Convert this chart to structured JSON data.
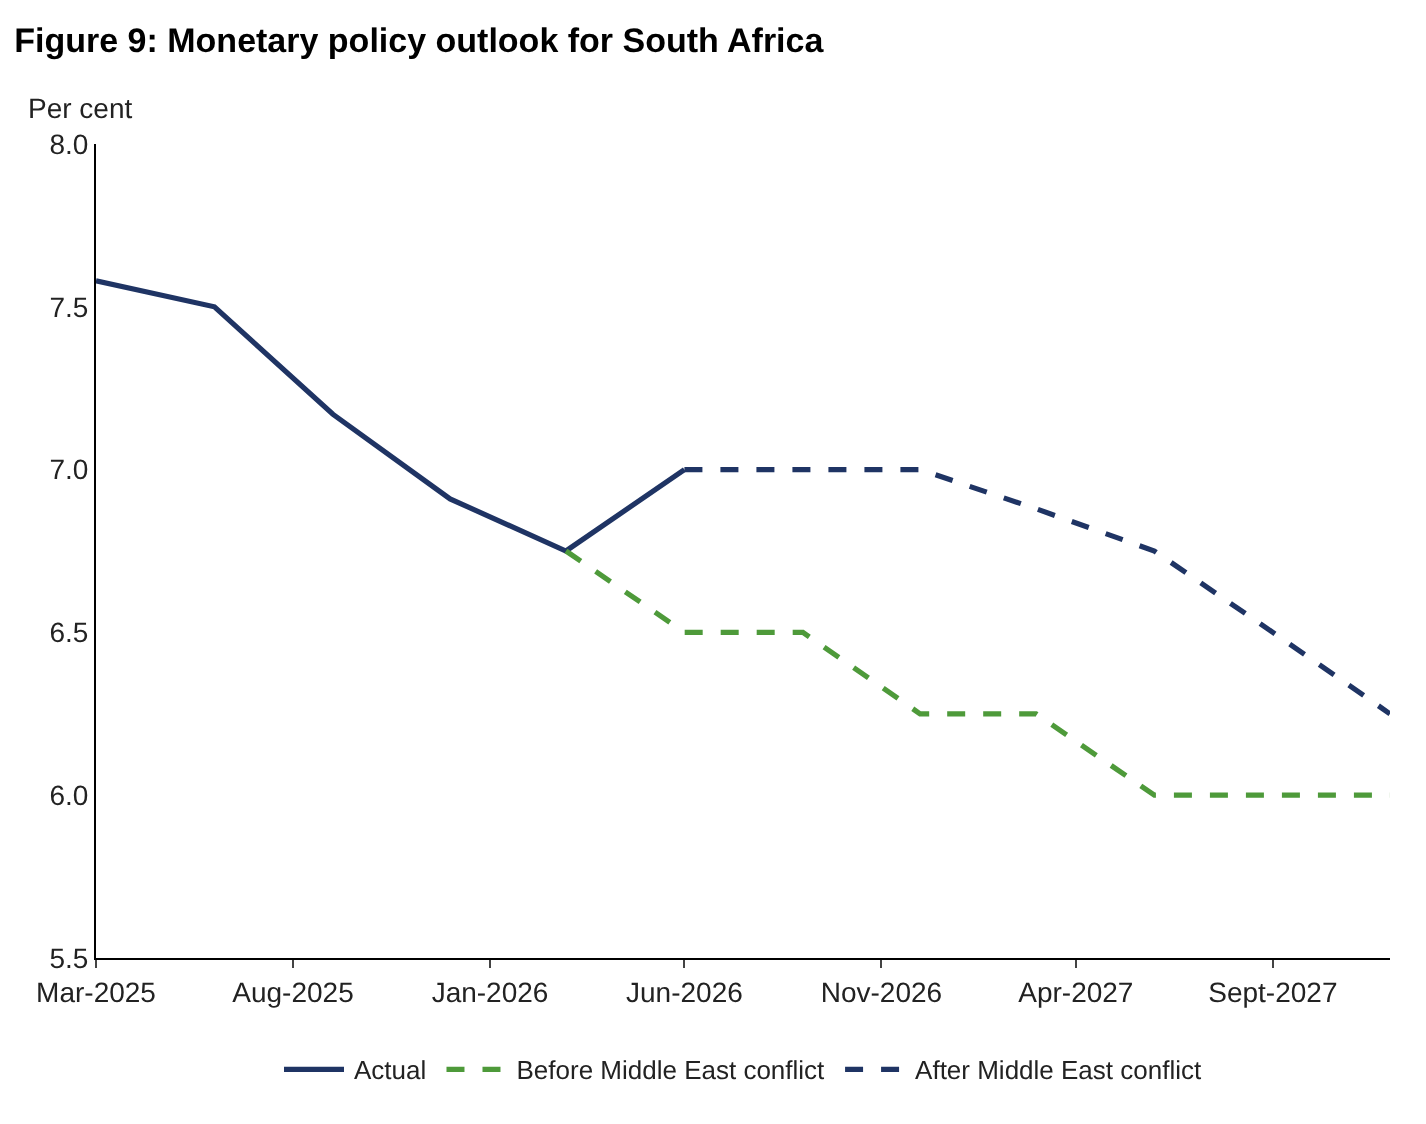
{
  "chart_data": {
    "type": "line",
    "title": "Figure 9: Monetary policy outlook for South Africa",
    "subtitle": "Per cent",
    "series": [
      {
        "name": "Actual",
        "color": "#1f3464",
        "line_style": "solid",
        "x": [
          "2025-03",
          "2025-06",
          "2025-09",
          "2025-12",
          "2026-03",
          "2026-06"
        ],
        "values": [
          7.58,
          7.5,
          7.17,
          6.91,
          6.75,
          7.0
        ]
      },
      {
        "name": "Before Middle East conflict",
        "color": "#4e9a3a",
        "line_style": "dashed",
        "x": [
          "2026-03",
          "2026-06",
          "2026-09",
          "2026-12",
          "2027-03",
          "2027-06",
          "2027-09",
          "2027-12"
        ],
        "values": [
          6.75,
          6.5,
          6.5,
          6.25,
          6.25,
          6.0,
          6.0,
          6.0
        ]
      },
      {
        "name": "After Middle East conflict",
        "color": "#1f3464",
        "line_style": "dashed",
        "x": [
          "2026-06",
          "2026-09",
          "2026-12",
          "2027-03",
          "2027-06",
          "2027-09",
          "2027-12"
        ],
        "values": [
          7.0,
          7.0,
          7.0,
          6.88,
          6.75,
          6.5,
          6.25
        ]
      }
    ],
    "xlim": [
      "2025-03",
      "2027-12"
    ],
    "xticks": [
      {
        "value": "2025-03",
        "label": "Mar-2025"
      },
      {
        "value": "2025-08",
        "label": "Aug-2025"
      },
      {
        "value": "2026-01",
        "label": "Jan-2026"
      },
      {
        "value": "2026-06",
        "label": "Jun-2026"
      },
      {
        "value": "2026-11",
        "label": "Nov-2026"
      },
      {
        "value": "2027-04",
        "label": "Apr-2027"
      },
      {
        "value": "2027-09",
        "label": "Sept-2027"
      }
    ],
    "ylim": [
      5.5,
      8.0
    ],
    "yticks": [
      {
        "value": 5.5,
        "label": "5.5"
      },
      {
        "value": 6,
        "label": "6.0"
      },
      {
        "value": 6.5,
        "label": "6.5"
      },
      {
        "value": 7,
        "label": "7.0"
      },
      {
        "value": 7.5,
        "label": "7.5"
      },
      {
        "value": 8,
        "label": "8.0"
      }
    ],
    "legend": "bottom",
    "marker": "none"
  }
}
